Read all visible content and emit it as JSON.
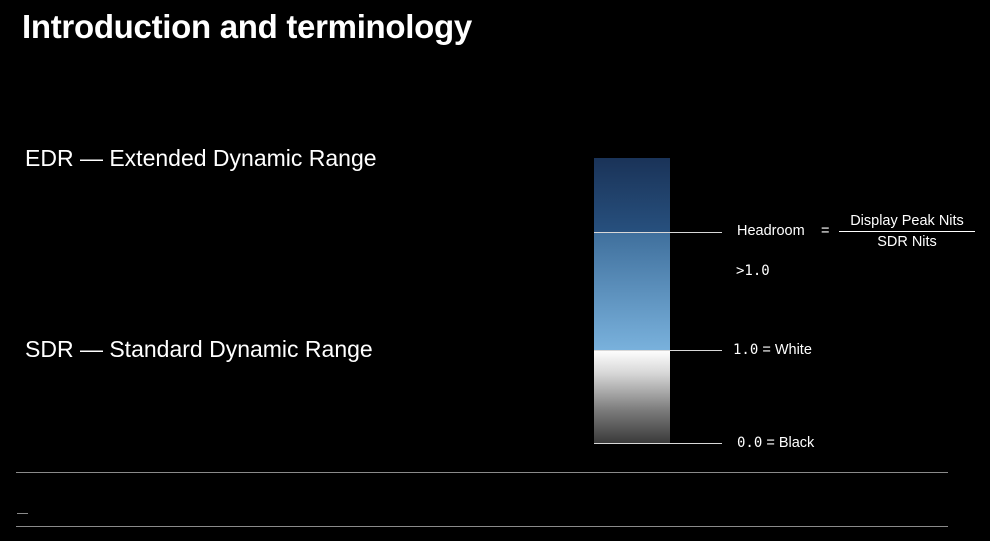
{
  "slide": {
    "title": "Introduction and terminology",
    "terms": {
      "edr": "EDR — Extended Dynamic Range",
      "sdr": "SDR — Standard Dynamic Range"
    }
  },
  "diagram": {
    "headroom_label": "Headroom",
    "equals": "=",
    "fraction": {
      "numerator": "Display Peak Nits",
      "denominator": "SDR Nits"
    },
    "greater_than_one": ">1.0",
    "white_value": "1.0",
    "white_label": " = White",
    "black_value": "0.0",
    "black_label": " = Black"
  },
  "colors": {
    "background": "#000000",
    "text": "#ffffff",
    "edr_top": "#1f3d66",
    "edr_headroom": "#79b1dc",
    "sdr_white": "#ffffff",
    "sdr_black": "#3a3a3a"
  }
}
